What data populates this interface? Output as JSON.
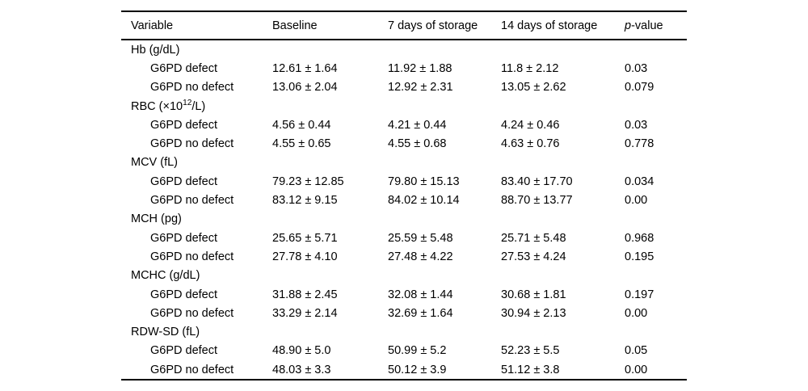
{
  "table": {
    "header": {
      "variable": "Variable",
      "baseline": "Baseline",
      "d7": "7 days of storage",
      "d14": "14 days of storage",
      "p_italic": "p",
      "p_rest": "-value"
    },
    "groups": [
      {
        "variable": "Hb (g/dL)",
        "rows": [
          {
            "label": "G6PD defect",
            "baseline": "12.61 ± 1.64",
            "d7": "11.92 ± 1.88",
            "d14": "11.8 ± 2.12",
            "p": "0.03"
          },
          {
            "label": "G6PD no defect",
            "baseline": "13.06 ± 2.04",
            "d7": "12.92 ± 2.31",
            "d14": "13.05 ± 2.62",
            "p": "0.079"
          }
        ]
      },
      {
        "variable": "RBC (×10^{12}/L)",
        "rows": [
          {
            "label": "G6PD defect",
            "baseline": "4.56 ± 0.44",
            "d7": "4.21 ± 0.44",
            "d14": "4.24 ± 0.46",
            "p": "0.03"
          },
          {
            "label": "G6PD no defect",
            "baseline": "4.55 ± 0.65",
            "d7": "4.55 ± 0.68",
            "d14": "4.63 ± 0.76",
            "p": "0.778"
          }
        ]
      },
      {
        "variable": "MCV (fL)",
        "rows": [
          {
            "label": "G6PD defect",
            "baseline": "79.23 ± 12.85",
            "d7": "79.80 ± 15.13",
            "d14": "83.40 ± 17.70",
            "p": "0.034"
          },
          {
            "label": "G6PD no defect",
            "baseline": "83.12 ± 9.15",
            "d7": "84.02 ± 10.14",
            "d14": "88.70 ± 13.77",
            "p": "0.00"
          }
        ]
      },
      {
        "variable": "MCH (pg)",
        "rows": [
          {
            "label": "G6PD defect",
            "baseline": "25.65 ± 5.71",
            "d7": "25.59 ± 5.48",
            "d14": "25.71 ± 5.48",
            "p": "0.968"
          },
          {
            "label": "G6PD no defect",
            "baseline": "27.78 ± 4.10",
            "d7": "27.48 ± 4.22",
            "d14": "27.53 ± 4.24",
            "p": "0.195"
          }
        ]
      },
      {
        "variable": "MCHC (g/dL)",
        "rows": [
          {
            "label": "G6PD defect",
            "baseline": "31.88 ± 2.45",
            "d7": "32.08 ± 1.44",
            "d14": "30.68 ± 1.81",
            "p": "0.197"
          },
          {
            "label": "G6PD no defect",
            "baseline": "33.29 ± 2.14",
            "d7": "32.69 ± 1.64",
            "d14": "30.94 ± 2.13",
            "p": "0.00"
          }
        ]
      },
      {
        "variable": "RDW-SD (fL)",
        "rows": [
          {
            "label": "G6PD defect",
            "baseline": "48.90 ± 5.0",
            "d7": "50.99 ± 5.2",
            "d14": "52.23 ± 5.5",
            "p": "0.05"
          },
          {
            "label": "G6PD no defect",
            "baseline": "48.03 ± 3.3",
            "d7": "50.12 ± 3.9",
            "d14": "51.12 ± 3.8",
            "p": "0.00"
          }
        ]
      }
    ]
  }
}
